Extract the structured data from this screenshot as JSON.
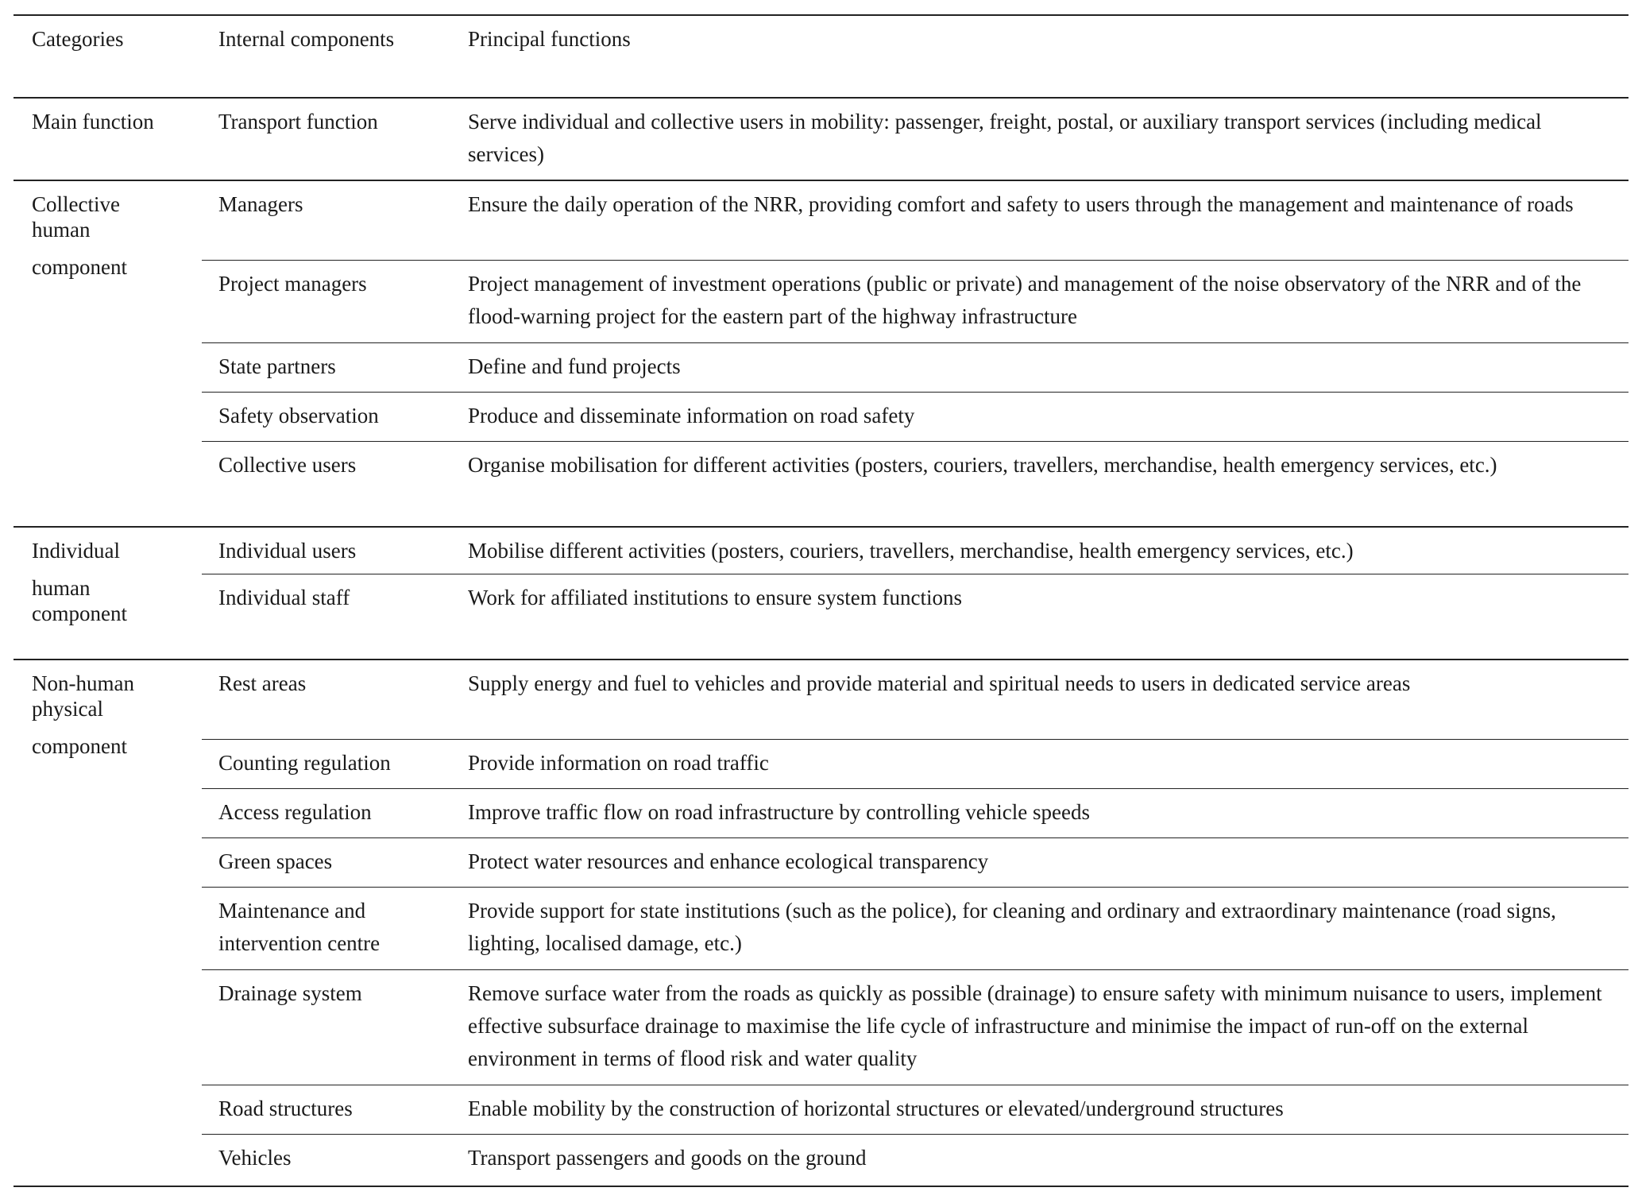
{
  "headers": {
    "categories": "Categories",
    "internal_components": "Internal components",
    "principal_functions": "Principal functions"
  },
  "groups": [
    {
      "category_lines": [
        "Main function"
      ],
      "rows": [
        {
          "component": "Transport function",
          "function": "Serve individual and collective users in mobility: passenger, freight, postal, or auxiliary transport services (including medical services)"
        }
      ]
    },
    {
      "category_lines": [
        "Collective",
        "human",
        "component"
      ],
      "rows": [
        {
          "component": "Managers",
          "function": "Ensure the daily operation of the NRR, providing comfort and safety to users through the management and maintenance of roads"
        },
        {
          "component": "Project managers",
          "function": "Project management of investment operations (public or private) and management of the noise observatory of the NRR and of the flood-warning project for the eastern part of the highway infrastructure"
        },
        {
          "component": "State partners",
          "function": "Define and fund projects"
        },
        {
          "component": "Safety observation",
          "function": "Produce and disseminate information on road safety"
        },
        {
          "component": "Collective users",
          "function": "Organise mobilisation for different activities (posters, couriers, travellers, merchandise, health emergency services, etc.)"
        }
      ]
    },
    {
      "category_lines": [
        "Individual",
        "human",
        "component"
      ],
      "rows": [
        {
          "component": "Individual users",
          "function": "Mobilise different activities (posters, couriers, travellers, merchandise, health emergency services, etc.)"
        },
        {
          "component": "Individual staff",
          "function": "Work for affiliated institutions to ensure system functions"
        }
      ]
    },
    {
      "category_lines": [
        "Non-human",
        "physical",
        "component"
      ],
      "rows": [
        {
          "component": "Rest areas",
          "function": "Supply energy and fuel to vehicles and provide material and spiritual needs to users in dedicated service areas"
        },
        {
          "component": "Counting regulation",
          "function": "Provide information on road traffic"
        },
        {
          "component": "Access regulation",
          "function": "Improve traffic flow on road infrastructure by controlling vehicle speeds"
        },
        {
          "component": "Green spaces",
          "function": "Protect water resources and enhance ecological transparency"
        },
        {
          "component": "Maintenance and intervention centre",
          "function": "Provide support for state institutions (such as the police), for cleaning and ordinary and extraordinary maintenance (road signs, lighting, localised damage, etc.)"
        },
        {
          "component": "Drainage system",
          "function": "Remove surface water from the roads as quickly as possible (drainage) to ensure safety with minimum nuisance to users, implement effective subsurface drainage to maximise the life cycle of infrastructure and minimise the impact of run-off on the external environment in terms of flood risk and water quality"
        },
        {
          "component": "Road structures",
          "function": "Enable mobility by the construction of horizontal structures or elevated/underground structures"
        },
        {
          "component": "Vehicles",
          "function": "Transport passengers and goods on the ground"
        }
      ]
    }
  ]
}
